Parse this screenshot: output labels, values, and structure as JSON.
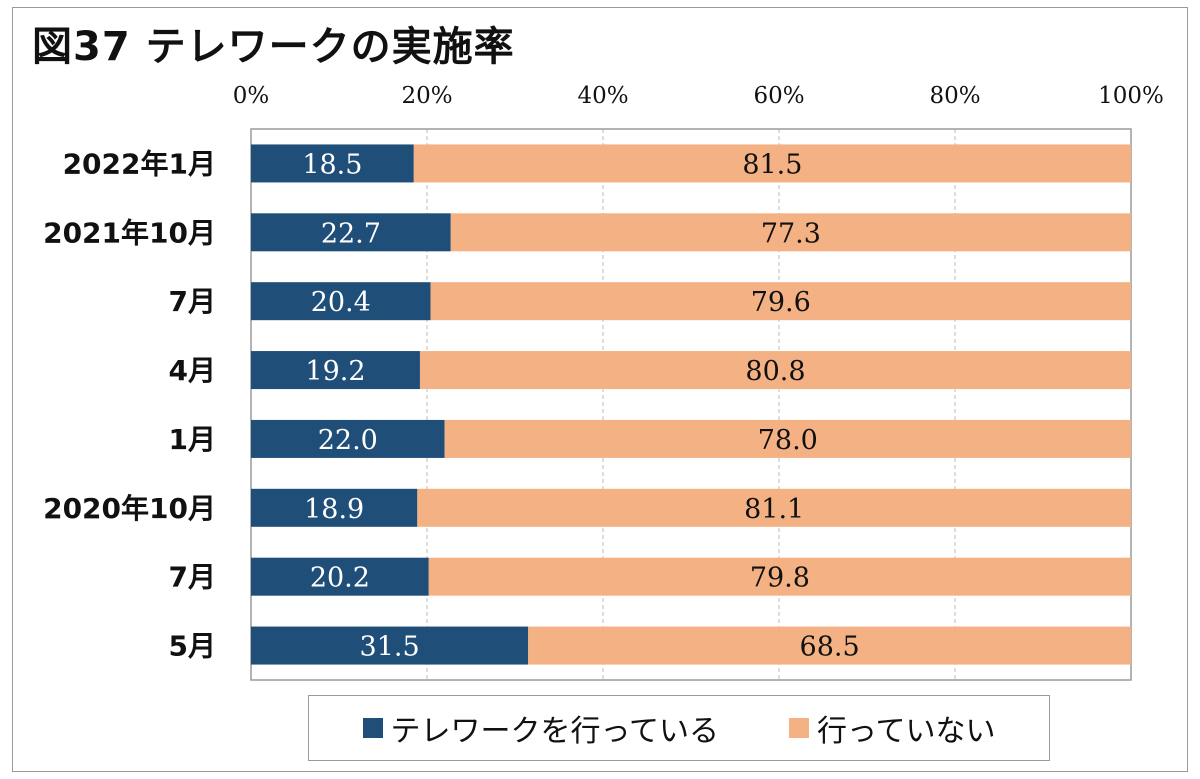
{
  "chart_data": {
    "type": "bar",
    "orientation": "horizontal",
    "stacked": true,
    "title": "図37 テレワークの実施率",
    "categories": [
      "2022年1月",
      "2021年10月",
      "7月",
      "4月",
      "1月",
      "2020年10月",
      "7月",
      "5月"
    ],
    "series": [
      {
        "name": "テレワークを行っている",
        "color": "#1f4e79",
        "label_color": "#ffffff",
        "values": [
          18.5,
          22.7,
          20.4,
          19.2,
          22.0,
          18.9,
          20.2,
          31.5
        ]
      },
      {
        "name": "行っていない",
        "color": "#f4b183",
        "label_color": "#111111",
        "values": [
          81.5,
          77.3,
          79.6,
          80.8,
          78.0,
          81.1,
          79.8,
          68.5
        ]
      }
    ],
    "value_labels": [
      [
        "18.5",
        "22.7",
        "20.4",
        "19.2",
        "22.0",
        "18.9",
        "20.2",
        "31.5"
      ],
      [
        "81.5",
        "77.3",
        "79.6",
        "80.8",
        "78.0",
        "81.1",
        "79.8",
        "68.5"
      ]
    ],
    "xlim": [
      0,
      100
    ],
    "xticks": [
      0,
      20,
      40,
      60,
      80,
      100
    ],
    "xtick_labels": [
      "0%",
      "20%",
      "40%",
      "60%",
      "80%",
      "100%"
    ],
    "xaxis_position": "top",
    "grid": true,
    "legend_position": "bottom"
  }
}
